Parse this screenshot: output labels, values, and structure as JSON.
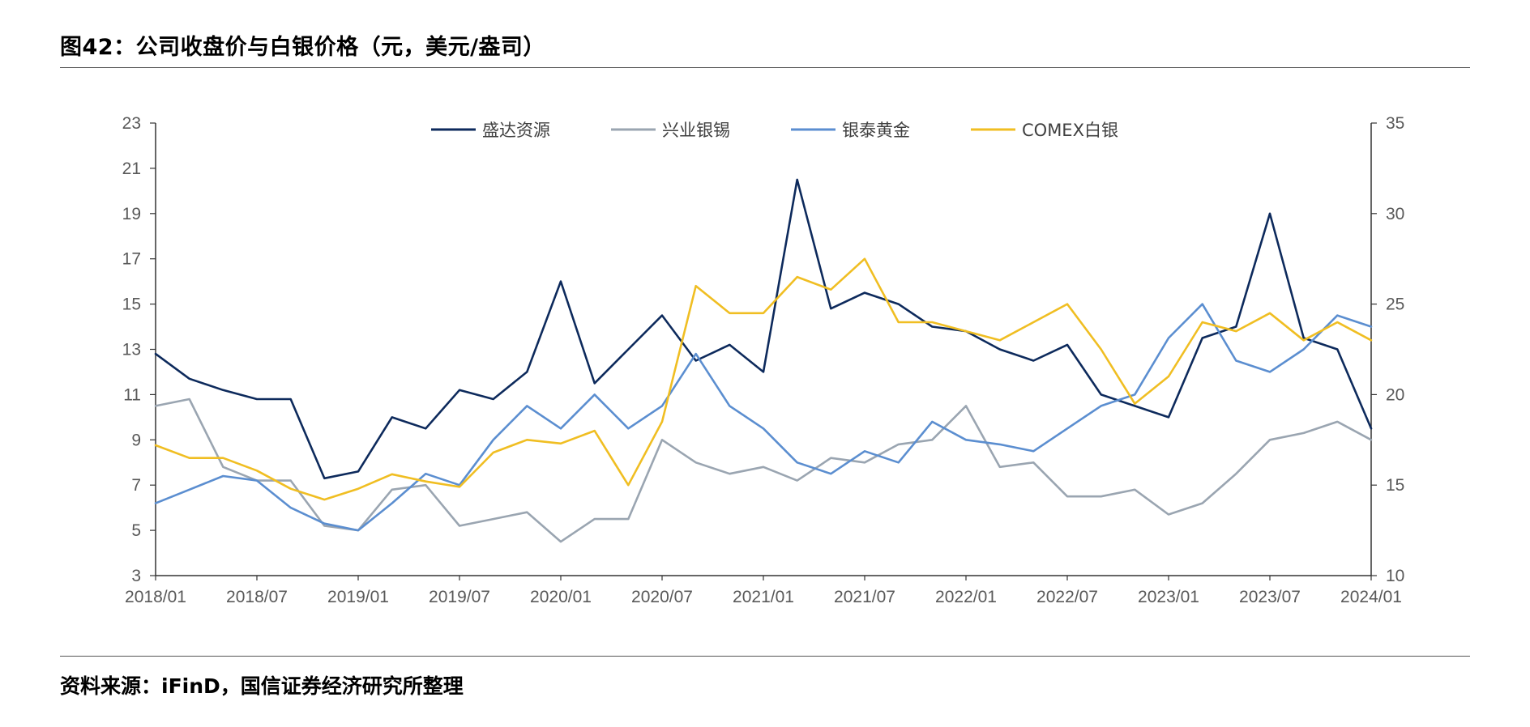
{
  "header": {
    "title": "图42：公司收盘价与白银价格（元，美元/盎司）"
  },
  "footer": {
    "source": "资料来源：iFinD，国信证券经济研究所整理"
  },
  "chart_data": {
    "type": "line",
    "title": "",
    "xlabel": "",
    "ylabel": "",
    "y2label": "",
    "x_ticks": [
      "2018/01",
      "2018/07",
      "2019/01",
      "2019/07",
      "2020/01",
      "2020/07",
      "2021/01",
      "2021/07",
      "2022/01",
      "2022/07",
      "2023/01",
      "2023/07",
      "2024/01"
    ],
    "ylim": [
      3,
      23
    ],
    "y_ticks": [
      3,
      5,
      7,
      9,
      11,
      13,
      15,
      17,
      19,
      21,
      23
    ],
    "y2lim": [
      10,
      35
    ],
    "y2_ticks": [
      10,
      15,
      20,
      25,
      30,
      35
    ],
    "grid": false,
    "legend_position": "top",
    "x": [
      "2018/01",
      "2018/03",
      "2018/05",
      "2018/07",
      "2018/09",
      "2018/11",
      "2019/01",
      "2019/03",
      "2019/05",
      "2019/07",
      "2019/09",
      "2019/11",
      "2020/01",
      "2020/03",
      "2020/05",
      "2020/07",
      "2020/09",
      "2020/11",
      "2021/01",
      "2021/03",
      "2021/05",
      "2021/07",
      "2021/09",
      "2021/11",
      "2022/01",
      "2022/03",
      "2022/05",
      "2022/07",
      "2022/09",
      "2022/11",
      "2023/01",
      "2023/03",
      "2023/05",
      "2023/07",
      "2023/09",
      "2023/11",
      "2024/01"
    ],
    "series": [
      {
        "name": "盛达资源",
        "axis": "left",
        "color": "#0d2a5c",
        "values": [
          12.8,
          11.7,
          11.2,
          10.8,
          10.8,
          7.3,
          7.6,
          10.0,
          9.5,
          11.2,
          10.8,
          12.0,
          16.0,
          11.5,
          13.0,
          14.5,
          12.5,
          13.2,
          12.0,
          20.5,
          14.8,
          15.5,
          15.0,
          14.0,
          13.8,
          13.0,
          12.5,
          13.2,
          11.0,
          10.5,
          10.0,
          13.5,
          14.0,
          19.0,
          13.5,
          13.0,
          9.5
        ]
      },
      {
        "name": "兴业银锡",
        "axis": "left",
        "color": "#9aa5b1",
        "values": [
          10.5,
          10.8,
          7.8,
          7.2,
          7.2,
          5.2,
          5.0,
          6.8,
          7.0,
          5.2,
          5.5,
          5.8,
          4.5,
          5.5,
          5.5,
          9.0,
          8.0,
          7.5,
          7.8,
          7.2,
          8.2,
          8.0,
          8.8,
          9.0,
          10.5,
          7.8,
          8.0,
          6.5,
          6.5,
          6.8,
          5.7,
          6.2,
          7.5,
          9.0,
          9.3,
          9.8,
          9.0
        ]
      },
      {
        "name": "银泰黄金",
        "axis": "left",
        "color": "#5b8ed0",
        "values": [
          6.2,
          6.8,
          7.4,
          7.2,
          6.0,
          5.3,
          5.0,
          6.2,
          7.5,
          7.0,
          9.0,
          10.5,
          9.5,
          11.0,
          9.5,
          10.5,
          12.8,
          10.5,
          9.5,
          8.0,
          7.5,
          8.5,
          8.0,
          9.8,
          9.0,
          8.8,
          8.5,
          9.5,
          10.5,
          11.0,
          13.5,
          15.0,
          12.5,
          12.0,
          13.0,
          14.5,
          14.0
        ]
      },
      {
        "name": "COMEX白银",
        "axis": "right",
        "color": "#f0be22",
        "values": [
          17.2,
          16.5,
          16.5,
          15.8,
          14.8,
          14.2,
          14.8,
          15.6,
          15.2,
          14.9,
          16.8,
          17.5,
          17.3,
          18.0,
          15.0,
          18.5,
          26.0,
          24.5,
          24.5,
          26.5,
          25.8,
          27.5,
          24.0,
          24.0,
          23.5,
          23.0,
          24.0,
          25.0,
          22.5,
          19.5,
          21.0,
          24.0,
          23.5,
          24.5,
          23.0,
          24.0,
          23.0
        ]
      }
    ]
  }
}
